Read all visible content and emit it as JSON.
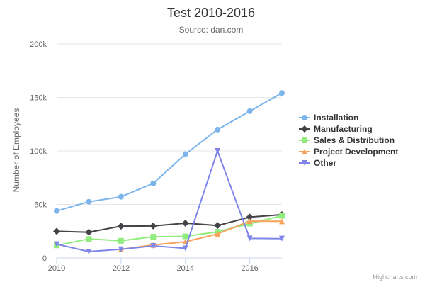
{
  "chart_data": {
    "type": "line",
    "title": "Test 2010-2016",
    "subtitle": "Source: dan.com",
    "ylabel": "Number of Employees",
    "xlabel": "",
    "x": [
      2010,
      2011,
      2012,
      2013,
      2014,
      2015,
      2016,
      2017
    ],
    "xlim": [
      2010,
      2017
    ],
    "ylim": [
      0,
      200000
    ],
    "x_ticks": [
      {
        "value": 2010,
        "label": "2010"
      },
      {
        "value": 2012,
        "label": "2012"
      },
      {
        "value": 2014,
        "label": "2014"
      },
      {
        "value": 2016,
        "label": "2016"
      }
    ],
    "y_ticks": [
      {
        "value": 0,
        "label": "0"
      },
      {
        "value": 50000,
        "label": "50k"
      },
      {
        "value": 100000,
        "label": "100k"
      },
      {
        "value": 150000,
        "label": "150k"
      },
      {
        "value": 200000,
        "label": "200k"
      }
    ],
    "grid": true,
    "legend_position": "right",
    "series": [
      {
        "name": "Installation",
        "color": "#7cb5ec",
        "marker": "circle",
        "values": [
          43934,
          52503,
          57177,
          69658,
          97031,
          119931,
          137133,
          154175
        ]
      },
      {
        "name": "Manufacturing",
        "color": "#434348",
        "marker": "diamond",
        "values": [
          24916,
          24064,
          29742,
          29851,
          32490,
          30282,
          38121,
          40434
        ]
      },
      {
        "name": "Sales & Distribution",
        "color": "#90ed7d",
        "marker": "square",
        "values": [
          11744,
          17722,
          16005,
          19771,
          20185,
          24377,
          32147,
          39387
        ]
      },
      {
        "name": "Project Development",
        "color": "#f7a35c",
        "marker": "triangle",
        "values": [
          null,
          null,
          7988,
          12169,
          15112,
          22452,
          34400,
          34227
        ]
      },
      {
        "name": "Other",
        "color": "#8085e9",
        "marker": "triangle-down",
        "values": [
          12908,
          5948,
          8105,
          11248,
          8989,
          100000,
          18274,
          18111
        ]
      }
    ]
  },
  "credits": "Highcharts.com"
}
